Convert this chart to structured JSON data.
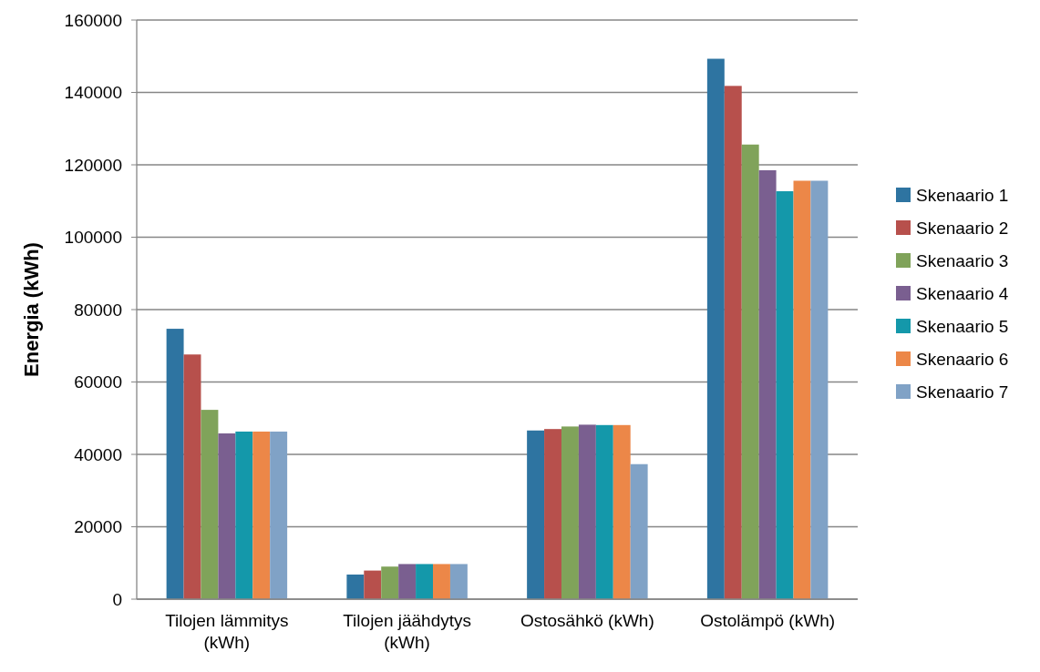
{
  "chart_data": {
    "type": "bar",
    "ylabel": "Energia (kWh)",
    "categories": [
      "Tilojen lämmitys (kWh)",
      "Tilojen jäähdytys (kWh)",
      "Ostosähkö (kWh)",
      "Ostolämpö (kWh)"
    ],
    "series": [
      {
        "name": "Skenaario 1",
        "color": "#2e74a1",
        "values": [
          74700,
          6800,
          46600,
          149300
        ]
      },
      {
        "name": "Skenaario 2",
        "color": "#b7504c",
        "values": [
          67600,
          7900,
          47000,
          141800
        ]
      },
      {
        "name": "Skenaario 3",
        "color": "#80a35a",
        "values": [
          52300,
          9000,
          47700,
          125600
        ]
      },
      {
        "name": "Skenaario 4",
        "color": "#7a5f90",
        "values": [
          45800,
          9700,
          48200,
          118500
        ]
      },
      {
        "name": "Skenaario 5",
        "color": "#1498aa",
        "values": [
          46300,
          9700,
          48100,
          112700
        ]
      },
      {
        "name": "Skenaario 6",
        "color": "#ec8748",
        "values": [
          46300,
          9700,
          48100,
          115600
        ]
      },
      {
        "name": "Skenaario 7",
        "color": "#80a2c6",
        "values": [
          46300,
          9700,
          37300,
          115600
        ]
      }
    ],
    "ylim": [
      0,
      160000
    ],
    "yticks": [
      0,
      20000,
      40000,
      60000,
      80000,
      100000,
      120000,
      140000,
      160000
    ],
    "grid": "y",
    "legend": "right"
  }
}
